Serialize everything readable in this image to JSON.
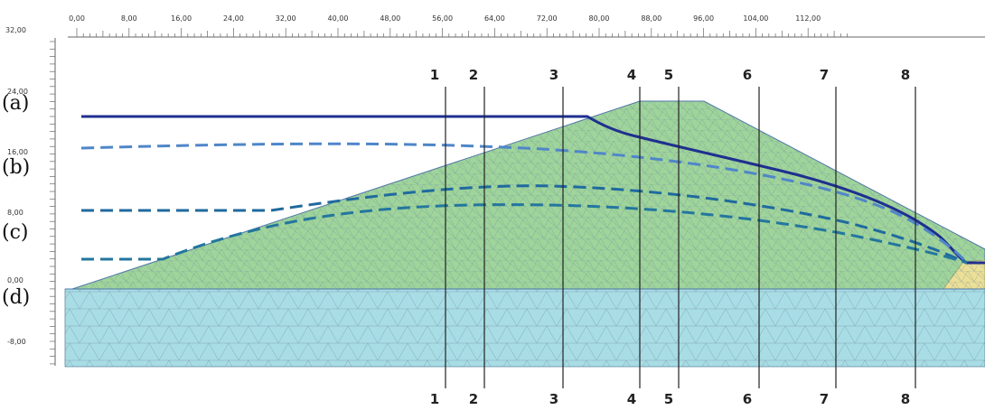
{
  "x_ruler": {
    "ticks": [
      "0,00",
      "8,00",
      "16,00",
      "24,00",
      "32,00",
      "40,00",
      "48,00",
      "56,00",
      "64,00",
      "72,00",
      "80,00",
      "88,00",
      "96,00",
      "104,00",
      "112,00"
    ]
  },
  "y_ruler": {
    "top_label": "32,00",
    "ticks": [
      "24,00",
      "16,00",
      "8,00",
      "0,00",
      "-8,00"
    ]
  },
  "sections": {
    "top": [
      "1",
      "2",
      "3",
      "4",
      "5",
      "6",
      "7",
      "8"
    ],
    "bottom": [
      "1",
      "2",
      "3",
      "4",
      "5",
      "6",
      "7",
      "8"
    ]
  },
  "curve_labels": [
    "(a)",
    "(b)",
    "(c)",
    "(d)"
  ],
  "colors": {
    "dam_fill": "#9fd49a",
    "foundation_fill": "#a9dde6",
    "drain_fill": "#ecdf96",
    "mesh_line": "#6f8f9f",
    "phreatic_a": "#1f2f8f",
    "phreatic_b": "#4f86c9",
    "phreatic_c": "#1f6a9e",
    "phreatic_c2": "#23769e",
    "phreatic_d": "#1f6a9e"
  }
}
